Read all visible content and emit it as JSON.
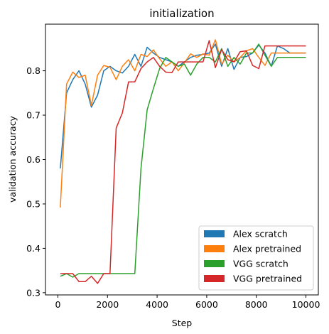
{
  "chart_data": {
    "type": "line",
    "title": "initialization",
    "xlabel": "Step",
    "ylabel": "validation accuracy",
    "xlim": [
      -500,
      10500
    ],
    "ylim": [
      0.295,
      0.905
    ],
    "xticks": [
      0,
      2000,
      4000,
      6000,
      8000,
      10000
    ],
    "yticks": [
      0.3,
      0.4,
      0.5,
      0.6,
      0.7,
      0.8
    ],
    "grid": false,
    "legend_position": "lower-right",
    "x": [
      100,
      350,
      600,
      850,
      1100,
      1350,
      1600,
      1850,
      2100,
      2350,
      2600,
      2850,
      3100,
      3350,
      3600,
      3850,
      4100,
      4350,
      4600,
      4850,
      5100,
      5350,
      5600,
      5850,
      6100,
      6350,
      6600,
      6850,
      7100,
      7350,
      7600,
      7850,
      8100,
      8350,
      8600,
      8850,
      9100,
      9350,
      9600,
      9850,
      10000
    ],
    "series": [
      {
        "name": "Alex scratch",
        "color": "#1f77b4",
        "values": [
          0.58,
          0.75,
          0.78,
          0.8,
          0.77,
          0.718,
          0.745,
          0.8,
          0.81,
          0.8,
          0.795,
          0.81,
          0.837,
          0.81,
          0.853,
          0.84,
          0.83,
          0.825,
          0.82,
          0.81,
          0.82,
          0.83,
          0.835,
          0.837,
          0.84,
          0.86,
          0.81,
          0.85,
          0.803,
          0.83,
          0.832,
          0.84,
          0.858,
          0.84,
          0.81,
          0.856,
          0.85,
          0.84,
          0.84,
          0.84,
          0.84
        ]
      },
      {
        "name": "Alex pretrained",
        "color": "#ff7f0e",
        "values": [
          0.492,
          0.77,
          0.797,
          0.785,
          0.79,
          0.722,
          0.79,
          0.812,
          0.808,
          0.78,
          0.81,
          0.825,
          0.8,
          0.837,
          0.832,
          0.847,
          0.827,
          0.81,
          0.82,
          0.8,
          0.818,
          0.838,
          0.83,
          0.838,
          0.835,
          0.87,
          0.815,
          0.835,
          0.82,
          0.83,
          0.845,
          0.85,
          0.83,
          0.812,
          0.84,
          0.84,
          0.84,
          0.84,
          0.84,
          0.84,
          0.84
        ]
      },
      {
        "name": "VGG scratch",
        "color": "#2ca02c",
        "values": [
          0.337,
          0.343,
          0.335,
          0.343,
          0.343,
          0.343,
          0.343,
          0.343,
          0.343,
          0.343,
          0.343,
          0.343,
          0.343,
          0.58,
          0.712,
          0.76,
          0.805,
          0.83,
          0.82,
          0.81,
          0.815,
          0.79,
          0.815,
          0.83,
          0.83,
          0.82,
          0.85,
          0.81,
          0.83,
          0.815,
          0.84,
          0.84,
          0.86,
          0.835,
          0.81,
          0.83,
          0.83,
          0.83,
          0.83,
          0.83,
          0.83
        ]
      },
      {
        "name": "VGG pretrained",
        "color": "#d62728",
        "values": [
          0.343,
          0.343,
          0.343,
          0.325,
          0.325,
          0.337,
          0.321,
          0.343,
          0.343,
          0.671,
          0.705,
          0.775,
          0.775,
          0.805,
          0.82,
          0.83,
          0.81,
          0.797,
          0.796,
          0.82,
          0.82,
          0.82,
          0.82,
          0.82,
          0.868,
          0.807,
          0.848,
          0.825,
          0.82,
          0.843,
          0.845,
          0.812,
          0.805,
          0.856,
          0.856,
          0.856,
          0.856,
          0.856,
          0.856,
          0.856,
          0.856
        ]
      }
    ]
  }
}
